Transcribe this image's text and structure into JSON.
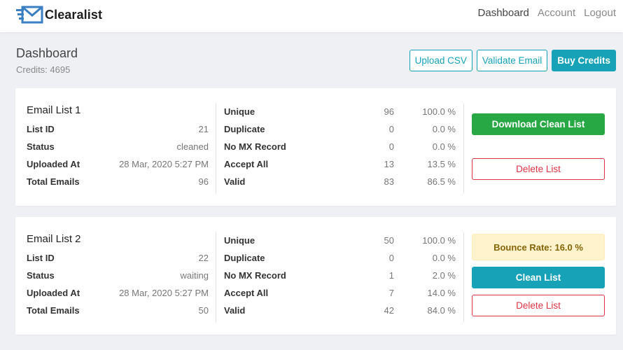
{
  "brand": {
    "name": "Clearalist",
    "logo_icon": "envelope-logo-icon",
    "logo_color": "#3a7fc1"
  },
  "nav": {
    "dashboard": "Dashboard",
    "account": "Account",
    "logout": "Logout"
  },
  "header": {
    "title": "Dashboard",
    "credits_label": "Credits:",
    "credits_value": "4695",
    "upload_csv": "Upload CSV",
    "validate_email": "Validate Email",
    "buy_credits": "Buy Credits"
  },
  "colors": {
    "info": "#17a2b8",
    "success": "#28a745",
    "danger": "#dc3545",
    "warning_bg": "#fff3cd",
    "warning_text": "#856404"
  },
  "lists": [
    {
      "title": "Email List 1",
      "meta": [
        {
          "label": "List ID",
          "value": "21"
        },
        {
          "label": "Status",
          "value": "cleaned"
        },
        {
          "label": "Uploaded At",
          "value": "28 Mar, 2020 5:27 PM"
        },
        {
          "label": "Total Emails",
          "value": "96"
        }
      ],
      "stats": [
        {
          "label": "Unique",
          "count": "96",
          "pct": "100.0 %"
        },
        {
          "label": "Duplicate",
          "count": "0",
          "pct": "0.0 %"
        },
        {
          "label": "No MX Record",
          "count": "0",
          "pct": "0.0 %"
        },
        {
          "label": "Accept All",
          "count": "13",
          "pct": "13.5 %"
        },
        {
          "label": "Valid",
          "count": "83",
          "pct": "86.5 %"
        }
      ],
      "primary_action": "Download Clean List",
      "delete_action": "Delete List"
    },
    {
      "title": "Email List 2",
      "meta": [
        {
          "label": "List ID",
          "value": "22"
        },
        {
          "label": "Status",
          "value": "waiting"
        },
        {
          "label": "Uploaded At",
          "value": "28 Mar, 2020 5:27 PM"
        },
        {
          "label": "Total Emails",
          "value": "50"
        }
      ],
      "stats": [
        {
          "label": "Unique",
          "count": "50",
          "pct": "100.0 %"
        },
        {
          "label": "Duplicate",
          "count": "0",
          "pct": "0.0 %"
        },
        {
          "label": "No MX Record",
          "count": "1",
          "pct": "2.0 %"
        },
        {
          "label": "Accept All",
          "count": "7",
          "pct": "14.0 %"
        },
        {
          "label": "Valid",
          "count": "42",
          "pct": "84.0 %"
        }
      ],
      "bounce_rate": "Bounce Rate: 16.0 %",
      "primary_action": "Clean List",
      "delete_action": "Delete List"
    }
  ]
}
